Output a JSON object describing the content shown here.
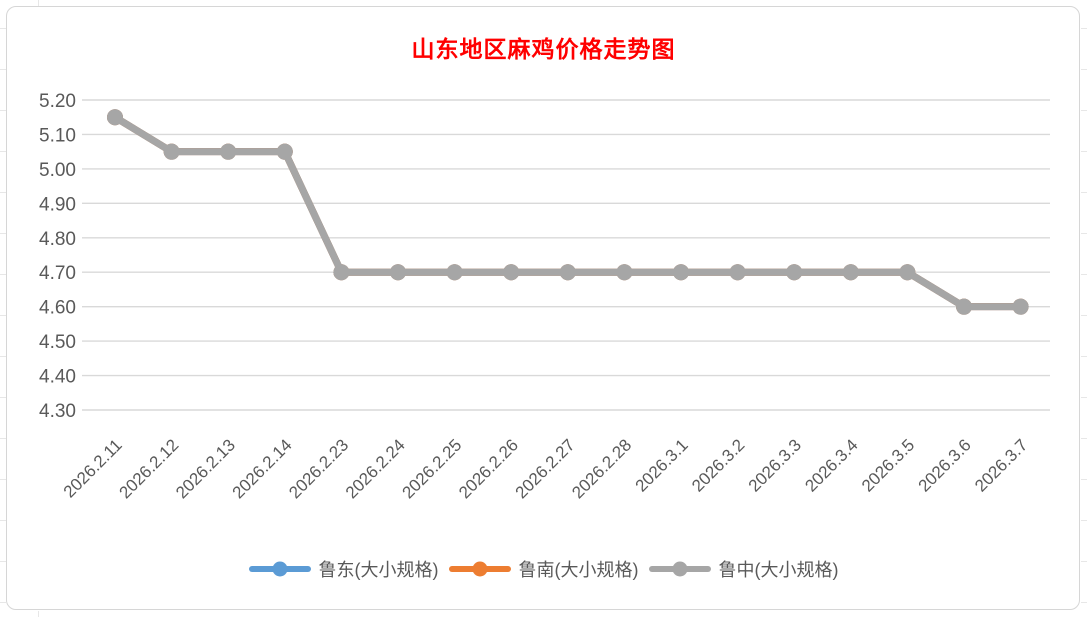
{
  "chart_data": {
    "type": "line",
    "title": "山东地区麻鸡价格走势图",
    "title_color": "#FF0000",
    "categories": [
      "2026.2.11",
      "2026.2.12",
      "2026.2.13",
      "2026.2.14",
      "2026.2.23",
      "2026.2.24",
      "2026.2.25",
      "2026.2.26",
      "2026.2.27",
      "2026.2.28",
      "2026.3.1",
      "2026.3.2",
      "2026.3.3",
      "2026.3.4",
      "2026.3.5",
      "2026.3.6",
      "2026.3.7"
    ],
    "series": [
      {
        "key": "ludong",
        "name": "鲁东(大小规格)",
        "color": "#5B9BD5",
        "values": [
          5.15,
          5.05,
          5.05,
          5.05,
          4.7,
          4.7,
          4.7,
          4.7,
          4.7,
          4.7,
          4.7,
          4.7,
          4.7,
          4.7,
          4.7,
          4.6,
          4.6
        ]
      },
      {
        "key": "lunan",
        "name": "鲁南(大小规格)",
        "color": "#ED7D31",
        "values": [
          5.15,
          5.05,
          5.05,
          5.05,
          4.7,
          4.7,
          4.7,
          4.7,
          4.7,
          4.7,
          4.7,
          4.7,
          4.7,
          4.7,
          4.7,
          4.6,
          4.6
        ]
      },
      {
        "key": "luzhong",
        "name": "鲁中(大小规格)",
        "color": "#A6A6A6",
        "values": [
          5.15,
          5.05,
          5.05,
          5.05,
          4.7,
          4.7,
          4.7,
          4.7,
          4.7,
          4.7,
          4.7,
          4.7,
          4.7,
          4.7,
          4.7,
          4.6,
          4.6
        ]
      }
    ],
    "ylim": [
      4.3,
      5.2
    ],
    "yticks": [
      "5.20",
      "5.10",
      "5.00",
      "4.90",
      "4.80",
      "4.70",
      "4.60",
      "4.50",
      "4.40",
      "4.30"
    ],
    "grid": true,
    "legend_position": "bottom",
    "note": "All three series overlap exactly; the gray 鲁中 series is drawn last and hides 鲁东 (blue) and 鲁南 (orange) lines."
  },
  "colors": {
    "grid": "#D9D9D9",
    "axis_text": "#595959",
    "chart_border": "#D6D6D6",
    "sheet_gridline": "#E7E7E7"
  }
}
